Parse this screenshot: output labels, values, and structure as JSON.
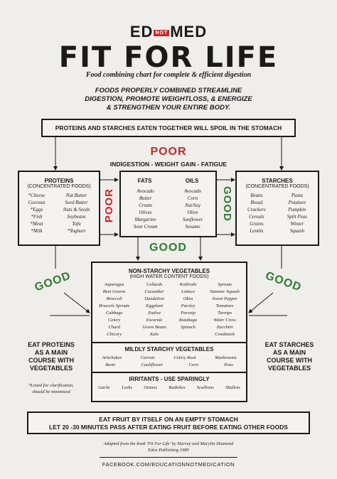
{
  "header": {
    "logo_left": "ED",
    "logo_not": "NOT",
    "logo_right": "MED",
    "title": "FIT FOR LIFE",
    "subtitle": "Food combining chart for complete & efficient digestion",
    "intro_lines": [
      "FOODS PROPERLY COMBINED STREAMLINE",
      "DIGESTION, PROMOTE WEIGHTLOSS, & ENERGIZE",
      "& STRENGTHEN YOUR ENTIRE BODY."
    ]
  },
  "warning": "PROTEINS AND STARCHES EATEN TOGETHER WILL SPOIL IN THE STOMACH",
  "labels": {
    "poor_top": "POOR",
    "indigestion": "INDIGESTION - WEIGHT GAIN - FATIGUE",
    "poor_side": "POOR",
    "good_side": "GOOD",
    "good_center": "GOOD",
    "good_left": "GOOD",
    "good_right": "GOOD"
  },
  "proteins": {
    "title": "PROTEINS",
    "sub": "(CONCENTRATED FOODS)",
    "col1": [
      "*Cheese",
      "Coconut",
      "*Eggs",
      "*Fish",
      "*Meat",
      "*Milk"
    ],
    "col2": [
      "Nut Butter",
      "Seed Butter",
      "Nuts & Seeds",
      "Soybeans",
      "Tofu",
      "*Yoghurt"
    ]
  },
  "fats_oils": {
    "fats_title": "FATS",
    "oils_title": "OILS",
    "col1": [
      "Avocado",
      "Butter",
      "Cream",
      "Olives",
      "Margarine",
      "Sour Cream"
    ],
    "col2": [
      "Avocado",
      "Corn",
      "Nut/Soy",
      "Olive",
      "Sunflower",
      "Sesame"
    ]
  },
  "starches": {
    "title": "STARCHES",
    "sub": "(CONCENTRATED FOODS)",
    "col1": [
      "Beans",
      "Bread",
      "Crackers",
      "Cereals",
      "Grains",
      "Lentils"
    ],
    "col2": [
      "Pasta",
      "Potatoes",
      "Pumpkin",
      "Split Peas",
      "Winter",
      "Squash"
    ]
  },
  "vegetables": {
    "title": "NON-STARCHY VEGETABLES",
    "sub": "(HIGH WATER CONTENT FOODS)",
    "col1": [
      "Asparagus",
      "Beet Greens",
      "Broccoli",
      "Brussels Sprouts",
      "Cabbage",
      "Celery",
      "Chard",
      "Chicory"
    ],
    "col2": [
      "Collards",
      "Cucumber",
      "Dandelion",
      "Eggplant",
      "Endive",
      "Escarole",
      "Green Beans",
      "Kale"
    ],
    "col3": [
      "Kohlrabi",
      "Lettuce",
      "Okra",
      "Parsley",
      "Parsnip",
      "Rutabaga",
      "Spinach",
      ""
    ],
    "col4": [
      "Sprouts",
      "Summer Squash",
      "Sweet Pepper",
      "Tomatoes",
      "Turnips",
      "Water Cress",
      "Zucchini",
      "Crookneck"
    ]
  },
  "mild": {
    "title": "MILDLY STARCHY VEGETABLES",
    "row1": [
      "Artichokes",
      "Carrots",
      "Celery Root",
      "Mushrooms"
    ],
    "row2": [
      "Beets",
      "Cauliflower",
      "Corn",
      "Peas"
    ]
  },
  "irritants": {
    "title": "IRRITANTS - USE SPARINGLY",
    "items": [
      "Garlic",
      "Leeks",
      "Onions",
      "Radishes",
      "Scallions",
      "Shallots"
    ]
  },
  "left_note": [
    "EAT PROTEINS",
    "AS A MAIN",
    "COURSE WITH",
    "VEGETABLES"
  ],
  "right_note": [
    "EAT STARCHES",
    "AS A MAIN",
    "COURSE WITH",
    "VEGETABLES"
  ],
  "footnote": [
    "*Listed for clarification,",
    "should be minimized"
  ],
  "fruit": {
    "line1": "EAT FRUIT BY ITSELF ON AN EMPTY STOMACH",
    "line2": "LET 20 -30 MINUTES PASS AFTER EATING FRUIT BEFORE EATING OTHER FOODS"
  },
  "credit": {
    "line1": "Adapted from the book 'Fit For Life' by Harvey and Marylin Diamond",
    "line2": "Eden Publishing 1985"
  },
  "facebook": "FACEBOOK.COM/EDUCATIONNOTMEDICATION",
  "colors": {
    "poor": "#c62828",
    "good": "#2e7d32",
    "ink": "#1a1a1a",
    "paper": "#efeeeb"
  }
}
